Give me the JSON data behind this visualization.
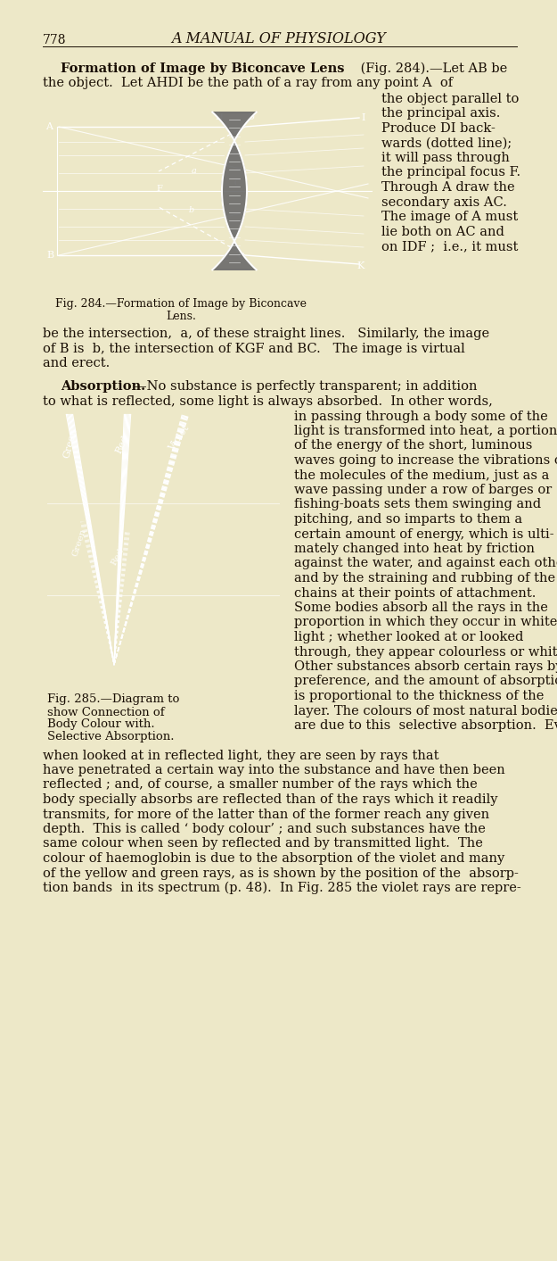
{
  "page_bg": "#ede8c8",
  "text_color": "#1a0f05",
  "page_width": 6.25,
  "page_height": 14.13,
  "dpi": 100,
  "header_num": "778",
  "header_title": "A MANUAL OF PHYSIOLOGY",
  "fig284_caption_line1": "Fig. 284.—Formation of Image by Biconcave",
  "fig284_caption_line2": "Lens.",
  "fig285_caption_line1": "Fig. 285.—Diagram to",
  "fig285_caption_line2": "show Connection of",
  "fig285_caption_line3": "Body Colour with.",
  "fig285_caption_line4": "Selective Absorption."
}
